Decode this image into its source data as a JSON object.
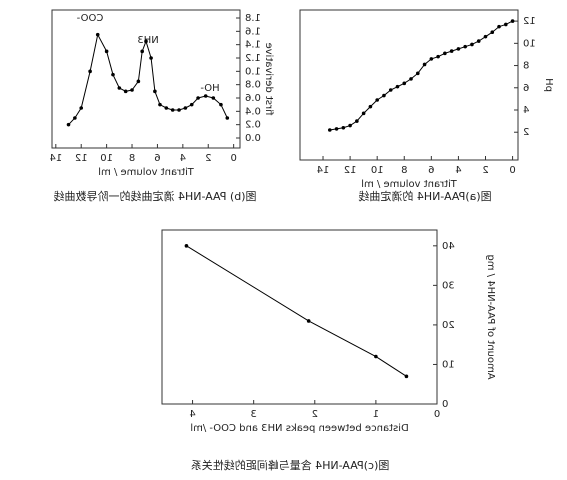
{
  "chart_data": [
    {
      "type": "line",
      "title": "图(a)PAA-NH4 的滴定曲线",
      "x_label": "Titrant volume / ml",
      "y_label": "pH",
      "x": [
        13.5,
        13,
        12.5,
        12,
        11.5,
        11,
        10.5,
        10,
        9.5,
        9,
        8.5,
        8,
        7.5,
        7,
        6.5,
        6,
        5.5,
        5,
        4.5,
        4,
        3.5,
        3,
        2.5,
        2,
        1.5,
        1,
        0.5,
        0
      ],
      "values": [
        2.2,
        2.3,
        2.4,
        2.6,
        3,
        3.7,
        4.3,
        4.9,
        5.3,
        5.8,
        6.1,
        6.4,
        6.8,
        7.3,
        8.1,
        8.6,
        8.8,
        9.1,
        9.3,
        9.5,
        9.7,
        9.9,
        10.2,
        10.6,
        11,
        11.5,
        11.7,
        12
      ],
      "color": "#000000",
      "xlim": [
        -0.4,
        15.7
      ],
      "ylim": [
        -0.5,
        13
      ],
      "xticks": [
        0,
        2,
        4,
        6,
        8,
        10,
        12,
        14
      ],
      "yticks": [
        2,
        4,
        6,
        8,
        10,
        12
      ]
    },
    {
      "type": "line",
      "title": "图(b) PAA-NH4 滴定曲线的一阶导数曲线",
      "x_label": "Titrant volume / ml",
      "y_label": "first derivative",
      "annotations": [
        "COO-",
        "NH3",
        "HO-"
      ],
      "x": [
        13,
        12.5,
        12,
        11.3,
        10.7,
        10,
        9.5,
        9,
        8.5,
        8,
        7.5,
        7.2,
        6.9,
        6.5,
        6.2,
        5.8,
        5.3,
        4.8,
        4.3,
        3.8,
        3.3,
        2.8,
        2.2,
        1.6,
        1,
        0.5
      ],
      "values": [
        0.2,
        0.3,
        0.45,
        1.0,
        1.55,
        1.3,
        0.95,
        0.75,
        0.7,
        0.72,
        0.85,
        1.3,
        1.45,
        1.2,
        0.7,
        0.5,
        0.45,
        0.42,
        0.42,
        0.45,
        0.5,
        0.6,
        0.63,
        0.6,
        0.5,
        0.3
      ],
      "color": "#000000",
      "xlim": [
        -0.5,
        14.3
      ],
      "ylim": [
        -0.15,
        1.92
      ],
      "xticks": [
        0,
        2,
        4,
        6,
        8,
        10,
        12,
        14
      ],
      "yticks": [
        {
          "value": 0,
          "label": "0.0"
        },
        0.2,
        0.4,
        0.6,
        0.8,
        {
          "value": 1,
          "label": "1.0"
        },
        1.2,
        1.4,
        1.6,
        1.8
      ]
    },
    {
      "type": "line",
      "title": "图(c)PAA-NH4 含量与峰间距的线性关系",
      "x_label": "Distance between peaks NH3 and COO- /ml",
      "y_label": "Amount of PAA-NH4 / mg",
      "x": [
        0.5,
        1.0,
        2.1,
        4.1
      ],
      "values": [
        7,
        12,
        21,
        40
      ],
      "color": "#000000",
      "xlim": [
        0,
        4.5
      ],
      "ylim": [
        0,
        44
      ],
      "xticks": [
        0,
        1,
        2,
        3,
        4
      ],
      "yticks": [
        0,
        10,
        20,
        30,
        40
      ]
    }
  ]
}
